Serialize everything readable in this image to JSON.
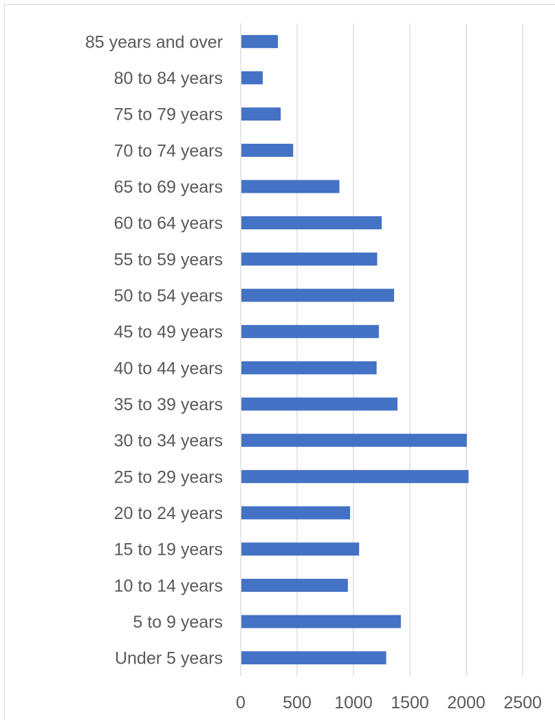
{
  "chart_data": {
    "type": "bar",
    "orientation": "horizontal",
    "title": "",
    "xlabel": "",
    "ylabel": "",
    "xlim": [
      0,
      2500
    ],
    "x_ticks": [
      0,
      500,
      1000,
      1500,
      2000,
      2500
    ],
    "grid": true,
    "bar_color": "#4472C4",
    "grid_color": "#d9d9d9",
    "text_color": "#595959",
    "categories": [
      "85 years and over",
      "80 to 84 years",
      "75 to 79 years",
      "70 to 74 years",
      "65 to 69 years",
      "60 to 64 years",
      "55 to 59 years",
      "50 to 54 years",
      "45 to 49 years",
      "40 to 44 years",
      "35 to 39 years",
      "30 to 34 years",
      "25 to 29 years",
      "20 to 24 years",
      "15 to 19 years",
      "10 to 14 years",
      "5 to 9 years",
      "Under 5 years"
    ],
    "values": [
      330,
      195,
      355,
      465,
      875,
      1250,
      1210,
      1360,
      1225,
      1205,
      1390,
      2005,
      2020,
      970,
      1050,
      950,
      1420,
      1290
    ]
  }
}
